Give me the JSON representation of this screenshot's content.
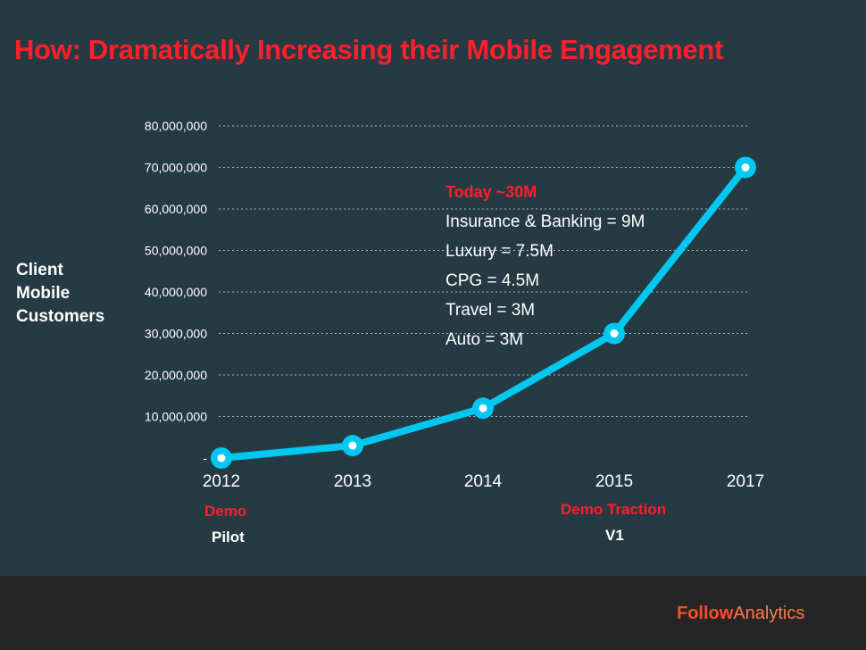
{
  "title": "How: Dramatically Increasing their Mobile Engagement",
  "ylabel_lines": [
    "Client",
    "Mobile",
    "Customers"
  ],
  "chart_data": {
    "type": "line",
    "x": [
      "2012",
      "2013",
      "2014",
      "2015",
      "2017"
    ],
    "values": [
      0,
      3000000,
      12000000,
      30000000,
      70000000
    ],
    "ylim": [
      0,
      80000000
    ],
    "yticks": [
      0,
      10000000,
      20000000,
      30000000,
      40000000,
      50000000,
      60000000,
      70000000,
      80000000
    ],
    "ytick_labels": [
      "-",
      "10,000,000",
      "20,000,000",
      "30,000,000",
      "40,000,000",
      "50,000,000",
      "60,000,000",
      "70,000,000",
      "80,000,000"
    ],
    "grid": true,
    "line_color": "#00c8f0",
    "grid_color": "#cfd6da"
  },
  "annotation": {
    "heading": "Today ~30M",
    "lines": [
      "Insurance & Banking = 9M",
      "Luxury = 7.5M",
      "CPG = 4.5M",
      "Travel = 3M",
      "Auto = 3M"
    ]
  },
  "stages": [
    {
      "red": "Demo",
      "white": "Pilot"
    },
    {
      "red": "Demo Traction",
      "white": "V1"
    }
  ],
  "brand": {
    "part1": "Follow",
    "part2": "Analytics"
  }
}
